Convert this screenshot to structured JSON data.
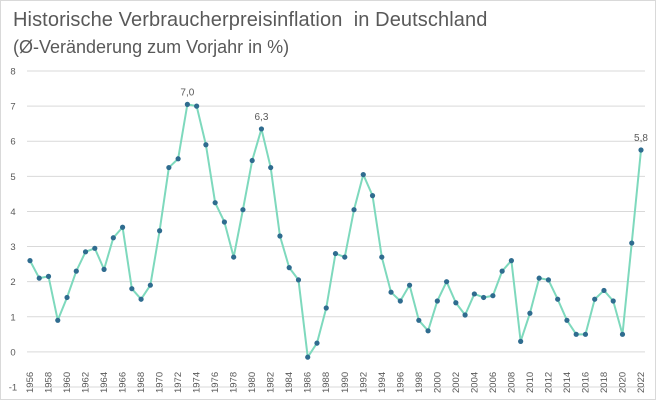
{
  "title": "Historische Verbraucherpreisinflation  in Deutschland",
  "subtitle": "(Ø-Veränderung zum Vorjahr in %)",
  "colors": {
    "line": "#7ed9bd",
    "marker": "#2f6c8f",
    "grid": "#d9d9d9",
    "text": "#595959"
  },
  "chart_data": {
    "type": "line",
    "title": "Historische Verbraucherpreisinflation  in Deutschland",
    "subtitle": "(Ø-Veränderung zum Vorjahr in %)",
    "xlabel": "",
    "ylabel": "",
    "ylim": [
      -1,
      8
    ],
    "yticks": [
      -1,
      0,
      1,
      2,
      3,
      4,
      5,
      6,
      7,
      8
    ],
    "grid": "horizontal",
    "x": [
      1956,
      1957,
      1958,
      1959,
      1960,
      1961,
      1962,
      1963,
      1964,
      1965,
      1966,
      1967,
      1968,
      1969,
      1970,
      1971,
      1972,
      1973,
      1974,
      1975,
      1976,
      1977,
      1978,
      1979,
      1980,
      1981,
      1982,
      1983,
      1984,
      1985,
      1986,
      1987,
      1988,
      1989,
      1990,
      1991,
      1992,
      1993,
      1994,
      1995,
      1996,
      1997,
      1998,
      1999,
      2000,
      2001,
      2002,
      2003,
      2004,
      2005,
      2006,
      2007,
      2008,
      2009,
      2010,
      2011,
      2012,
      2013,
      2014,
      2015,
      2016,
      2017,
      2018,
      2019,
      2020,
      2021,
      2022
    ],
    "x_tick_labels": [
      "1956",
      "1958",
      "1960",
      "1962",
      "1964",
      "1966",
      "1968",
      "1970",
      "1972",
      "1974",
      "1976",
      "1978",
      "1980",
      "1982",
      "1984",
      "1986",
      "1988",
      "1990",
      "1992",
      "1994",
      "1996",
      "1998",
      "2000",
      "2002",
      "2004",
      "2006",
      "2008",
      "2010",
      "2012",
      "2014",
      "2016",
      "2018",
      "2020",
      "2022"
    ],
    "series": [
      {
        "values": [
          2.6,
          2.1,
          2.15,
          0.9,
          1.55,
          2.3,
          2.85,
          2.95,
          2.35,
          3.25,
          3.55,
          1.8,
          1.5,
          1.9,
          3.45,
          5.25,
          5.5,
          7.05,
          7.0,
          5.9,
          4.25,
          3.7,
          2.7,
          4.05,
          5.45,
          6.35,
          5.25,
          3.3,
          2.4,
          2.05,
          -0.15,
          0.25,
          1.25,
          2.8,
          2.7,
          4.05,
          5.05,
          4.45,
          2.7,
          1.7,
          1.45,
          1.9,
          0.9,
          0.6,
          1.45,
          2.0,
          1.4,
          1.05,
          1.65,
          1.55,
          1.6,
          2.3,
          2.6,
          0.3,
          1.1,
          2.1,
          2.05,
          1.5,
          0.9,
          0.5,
          0.5,
          1.5,
          1.75,
          1.45,
          0.5,
          3.1,
          5.75
        ]
      }
    ],
    "data_labels": [
      {
        "x": 1973,
        "text": "7,0"
      },
      {
        "x": 1981,
        "text": "6,3"
      },
      {
        "x": 2022,
        "text": "5,8"
      }
    ]
  }
}
